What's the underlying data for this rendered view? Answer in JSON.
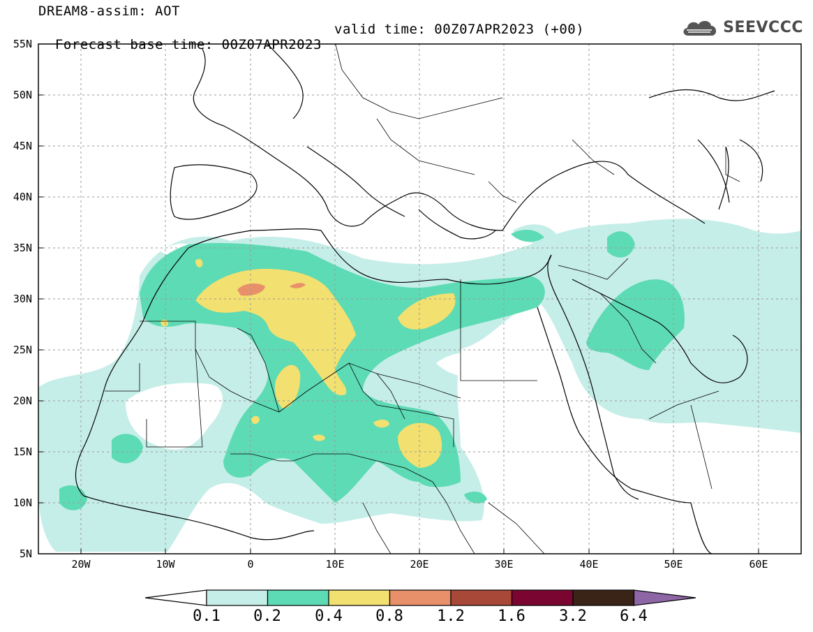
{
  "header": {
    "model_title": "DREAM8-assim: AOT",
    "base_time": "Forecast base time: 00Z07APR2023",
    "valid_time": "valid time: 00Z07APR2023 (+00)"
  },
  "logo": {
    "text": "SEEVCCC",
    "icon": "cloud-icon"
  },
  "map": {
    "lon_range": [
      -25,
      65
    ],
    "lat_range": [
      5,
      55
    ],
    "lon_ticks": [
      "20W",
      "10W",
      "0",
      "10E",
      "20E",
      "30E",
      "40E",
      "50E",
      "60E"
    ],
    "lat_ticks": [
      "55N",
      "50N",
      "45N",
      "40N",
      "35N",
      "30N",
      "25N",
      "20N",
      "15N",
      "10N",
      "5N"
    ],
    "grid": true
  },
  "colorbar": {
    "labels": [
      "0.1",
      "0.2",
      "0.4",
      "0.8",
      "1.2",
      "1.6",
      "3.2",
      "6.4"
    ],
    "colors": [
      "#ffffff",
      "#c6eee8",
      "#5ddbb4",
      "#f2e070",
      "#e8906a",
      "#a84838",
      "#7a0530",
      "#3a2418",
      "#8e66a6"
    ]
  }
}
